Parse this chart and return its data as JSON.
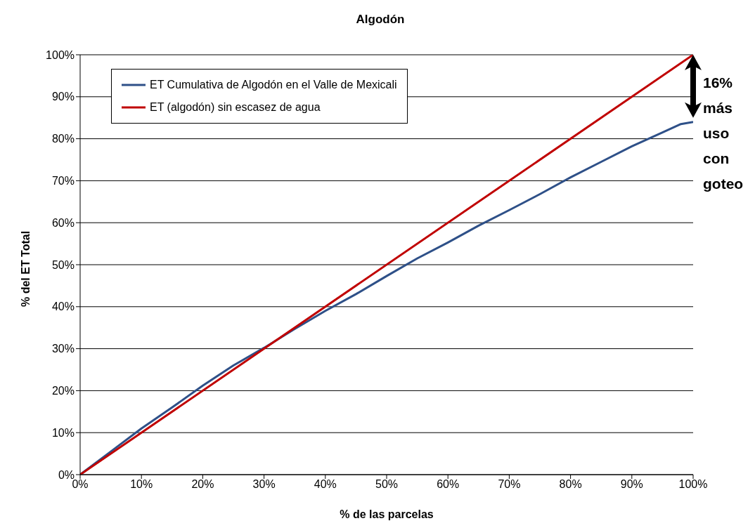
{
  "chart_data": {
    "type": "line",
    "title": "Algodón",
    "xlabel": "% de las parcelas",
    "ylabel": "% del ET Total",
    "x": [
      0,
      5,
      10,
      15,
      20,
      25,
      30,
      35,
      40,
      45,
      50,
      55,
      60,
      65,
      70,
      75,
      80,
      85,
      90,
      95,
      98,
      100
    ],
    "series": [
      {
        "name": "ET Cumulativa de Algodón en el Valle de Mexicali",
        "color": "#2e5088",
        "values": [
          0,
          5.5,
          11,
          16,
          21.2,
          26,
          30.2,
          34.7,
          39,
          43,
          47.3,
          51.5,
          55.3,
          59.3,
          63,
          66.8,
          70.8,
          74.5,
          78.2,
          81.5,
          83.5,
          84
        ]
      },
      {
        "name": "ET (algodón) sin escasez de agua",
        "color": "#c00000",
        "x": [
          0,
          100
        ],
        "values": [
          0,
          100
        ]
      }
    ],
    "xlim": [
      0,
      100
    ],
    "ylim": [
      0,
      100
    ],
    "xticks": [
      {
        "value": 0,
        "label": "0%"
      },
      {
        "value": 10,
        "label": "10%"
      },
      {
        "value": 20,
        "label": "20%"
      },
      {
        "value": 30,
        "label": "30%"
      },
      {
        "value": 40,
        "label": "40%"
      },
      {
        "value": 50,
        "label": "50%"
      },
      {
        "value": 60,
        "label": "60%"
      },
      {
        "value": 70,
        "label": "70%"
      },
      {
        "value": 80,
        "label": "80%"
      },
      {
        "value": 90,
        "label": "90%"
      },
      {
        "value": 100,
        "label": "100%"
      }
    ],
    "yticks": [
      {
        "value": 0,
        "label": "0%"
      },
      {
        "value": 10,
        "label": "10%"
      },
      {
        "value": 20,
        "label": "20%"
      },
      {
        "value": 30,
        "label": "30%"
      },
      {
        "value": 40,
        "label": "40%"
      },
      {
        "value": 50,
        "label": "50%"
      },
      {
        "value": 60,
        "label": "60%"
      },
      {
        "value": 70,
        "label": "70%"
      },
      {
        "value": 80,
        "label": "80%"
      },
      {
        "value": 90,
        "label": "90%"
      },
      {
        "value": 100,
        "label": "100%"
      }
    ],
    "annotations": [
      "16% más uso con goteo"
    ],
    "grid": "y",
    "legend": "top left",
    "marker": "none",
    "line_style": "solid"
  }
}
